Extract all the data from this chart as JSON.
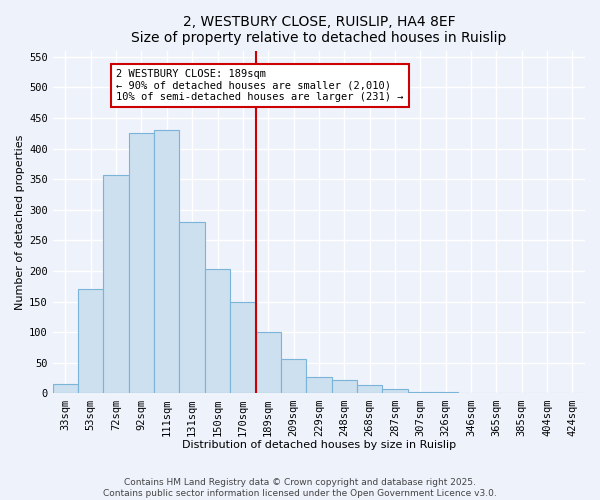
{
  "title": "2, WESTBURY CLOSE, RUISLIP, HA4 8EF",
  "subtitle": "Size of property relative to detached houses in Ruislip",
  "xlabel": "Distribution of detached houses by size in Ruislip",
  "ylabel": "Number of detached properties",
  "categories": [
    "33sqm",
    "53sqm",
    "72sqm",
    "92sqm",
    "111sqm",
    "131sqm",
    "150sqm",
    "170sqm",
    "189sqm",
    "209sqm",
    "229sqm",
    "248sqm",
    "268sqm",
    "287sqm",
    "307sqm",
    "326sqm",
    "346sqm",
    "365sqm",
    "385sqm",
    "404sqm",
    "424sqm"
  ],
  "values": [
    15,
    170,
    357,
    425,
    430,
    280,
    203,
    150,
    100,
    57,
    27,
    22,
    14,
    7,
    3,
    2,
    1,
    0,
    0,
    0,
    0
  ],
  "bar_color": "#cce0f0",
  "bar_edge_color": "#7ab4d8",
  "vline_x_index": 8,
  "vline_color": "#cc0000",
  "annotation_line1": "2 WESTBURY CLOSE: 189sqm",
  "annotation_line2": "← 90% of detached houses are smaller (2,010)",
  "annotation_line3": "10% of semi-detached houses are larger (231) →",
  "annotation_box_color": "#ffffff",
  "annotation_box_edge_color": "#cc0000",
  "ylim": [
    0,
    560
  ],
  "yticks": [
    0,
    50,
    100,
    150,
    200,
    250,
    300,
    350,
    400,
    450,
    500,
    550
  ],
  "footer_line1": "Contains HM Land Registry data © Crown copyright and database right 2025.",
  "footer_line2": "Contains public sector information licensed under the Open Government Licence v3.0.",
  "bg_color": "#eef2fb",
  "grid_color": "#ffffff",
  "title_fontsize": 10,
  "subtitle_fontsize": 9,
  "axis_label_fontsize": 8,
  "tick_fontsize": 7.5,
  "annotation_fontsize": 7.5,
  "footer_fontsize": 6.5
}
